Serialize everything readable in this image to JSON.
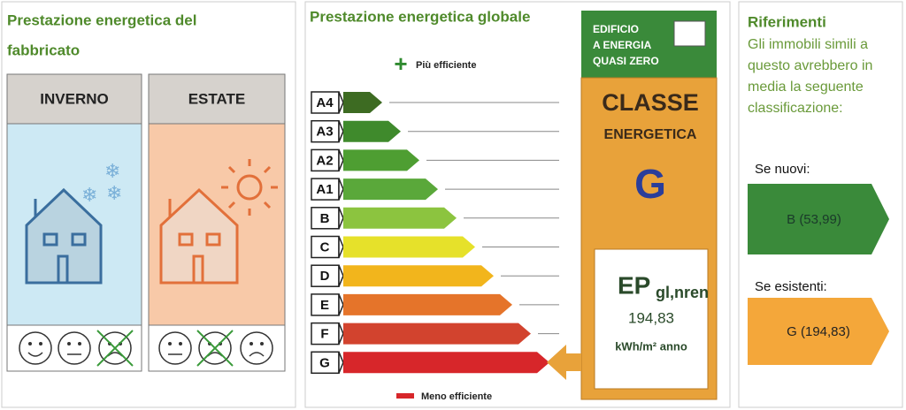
{
  "left_panel": {
    "title": [
      "Prestazione energetica del",
      "fabbricato"
    ],
    "seasons": [
      "INVERNO",
      "ESTATE"
    ]
  },
  "global_panel": {
    "title": "Prestazione energetica globale",
    "top_label": "Più efficiente",
    "bottom_label": "Meno efficiente",
    "classes": [
      "A4",
      "A3",
      "A2",
      "A1",
      "B",
      "C",
      "D",
      "E",
      "F",
      "G"
    ],
    "nzeb_label": [
      "EDIFICIO",
      "A ENERGIA",
      "QUASI ZERO"
    ],
    "class_title": [
      "CLASSE",
      "ENERGETICA"
    ],
    "class_value": "G",
    "ep_label": "EP",
    "ep_subscript": "gl,nren",
    "ep_value": "194,83",
    "ep_unit": "kWh/m² anno"
  },
  "references": {
    "title": "Riferimenti",
    "text": [
      "Gli immobili simili a",
      "questo avrebbero in",
      "media la seguente",
      "classificazione:"
    ],
    "new_label": "Se nuovi:",
    "new_value": "B (53,99)",
    "existing_label": "Se esistenti:",
    "existing_value": "G (194,83)"
  }
}
